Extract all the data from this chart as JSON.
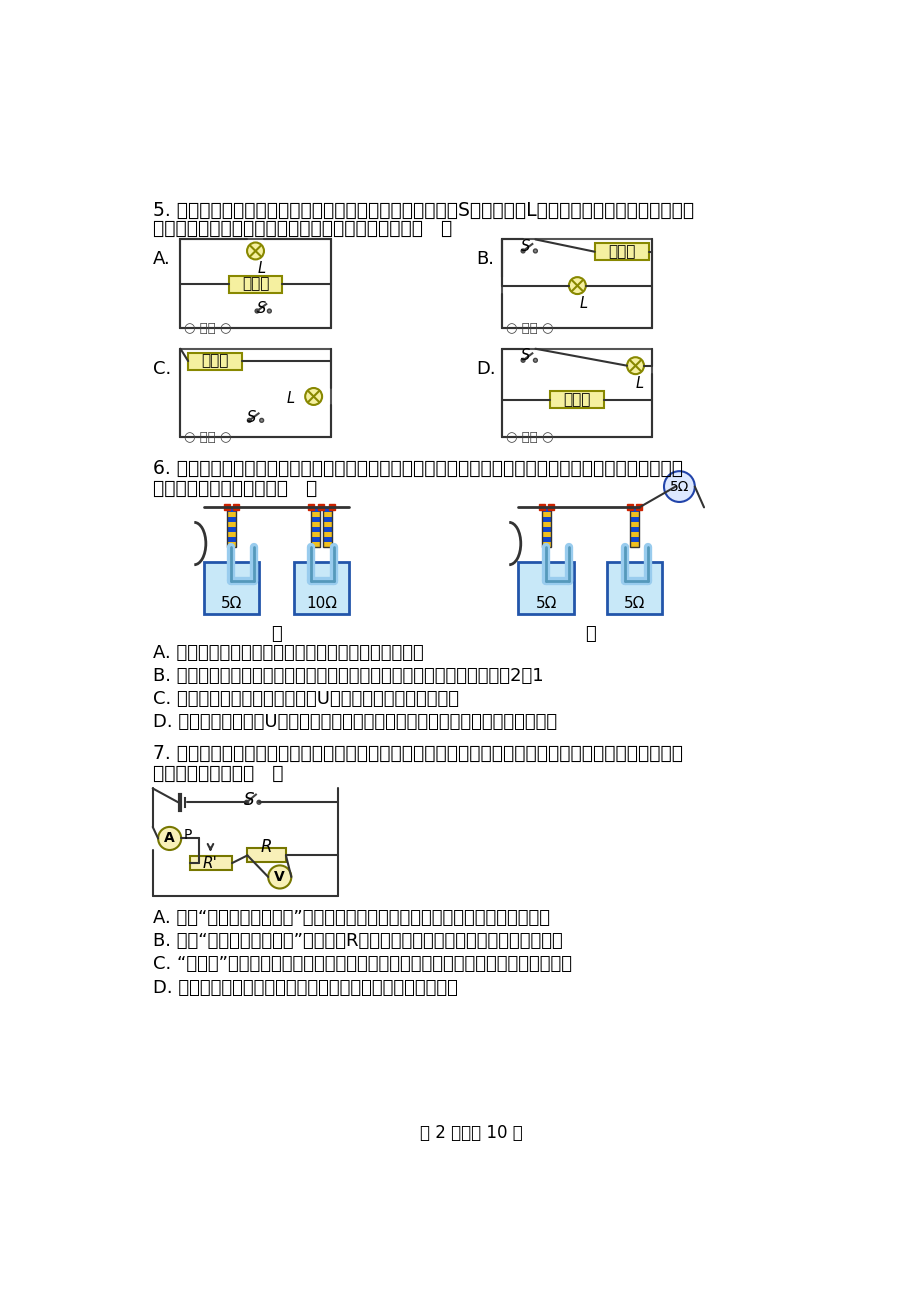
{
  "page_bg": "#ffffff",
  "text_color": "#000000",
  "font_size_body": 13.5,
  "font_size_small": 11,
  "q5_text_line1": "5. 电热蚊香器是一种常用的除蚊工具，接通电源，闭合开关S后，指示灯L和发热体才能工作；若指示灯损",
  "q5_text_line2": "坏，发热体仍能正常工作。下图中电路符合要求的是（   ）",
  "q6_text_line1": "6. 如图是探究电流通过导体时产生热量的多少与哪些因素有关的实验装置，两个透明容器中密封着等量的",
  "q6_text_line2": "空气。下列说法正确的是（   ）",
  "q6_a": "A. 甲装置可探究电流产生热量的多少与电流大小的关系",
  "q6_b": "B. 甲装置通电一段时间后，电流通过左右两容器内导体产生的热量之比是2：1",
  "q6_c": "C. 乙装置通电一段时间后，左侧U形管中液面高度差比右侧大",
  "q6_d": "D. 该实验装置是利用U形管中液体的热胀冷缩来反映电流通过导体产生热量的多少",
  "q7_text_line1": "7. 物理是一门以实验为基础的学科，小洛发现很多电学实验都用到了如图所示的电路。关于这些实验，下",
  "q7_text_line2": "列说法不正确的是（   ）",
  "q7_a": "A. 探究“电流与电阵的关系”时，更换更大的电阵后，滑动变阵器滑片应向右移动",
  "q7_b": "B. 探究“电流与电压的关系”时，要使R两端电压增大，滑动变阵器滑片应向右移动",
  "q7_c": "C. “伏安法”测定值电阵阵值时，调节滑动变阵器多次实验的目的是求平均值减小误差",
  "q7_d": "D. 在以上选项的三个实验中，滑动变阵器都有保护电路的作用",
  "page_footer": "第 2 页，共 10 页"
}
